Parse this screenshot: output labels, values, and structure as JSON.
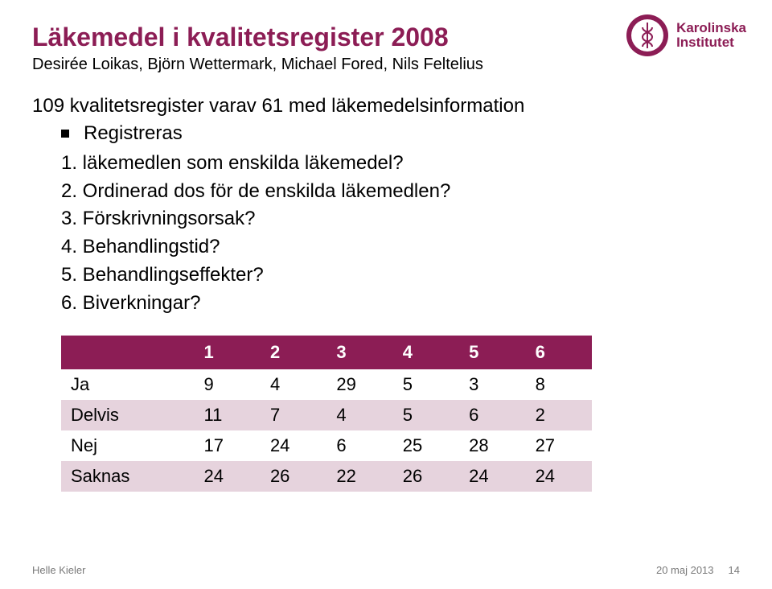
{
  "accent_color": "#8c1d55",
  "title_color": "#8c1d55",
  "title": "Läkemedel i kvalitetsregister 2008",
  "subtitle": "Desirée Loikas, Björn Wettermark, Michael Fored, Nils Feltelius",
  "lead": "109 kvalitetsregister varav 61 med läkemedelsinformation",
  "bullet": "Registreras",
  "questions": [
    "1. läkemedlen som enskilda läkemedel?",
    "2. Ordinerad dos för de enskilda läkemedlen?",
    "3. Förskrivningsorsak?",
    "4. Behandlingstid?",
    "5. Behandlingseffekter?",
    "6. Biverkningar?"
  ],
  "table": {
    "header_bg": "#8c1d55",
    "header_fg": "#ffffff",
    "row_alt_bg": "#e6d3dd",
    "row_bg": "#ffffff",
    "cell_font_size": 22,
    "columns": [
      "",
      "1",
      "2",
      "3",
      "4",
      "5",
      "6"
    ],
    "rows": [
      {
        "label": "Ja",
        "values": [
          "9",
          "4",
          "29",
          "5",
          "3",
          "8"
        ]
      },
      {
        "label": "Delvis",
        "values": [
          "11",
          "7",
          "4",
          "5",
          "6",
          "2"
        ]
      },
      {
        "label": "Nej",
        "values": [
          "17",
          "24",
          "6",
          "25",
          "28",
          "27"
        ]
      },
      {
        "label": "Saknas",
        "values": [
          "24",
          "26",
          "22",
          "26",
          "24",
          "24"
        ]
      }
    ]
  },
  "logo": {
    "seal_outer": "#8c1d55",
    "seal_inner": "#ffffff",
    "line1": "Karolinska",
    "line2": "Institutet",
    "text_color": "#8c1d55"
  },
  "footer": {
    "left": "Helle Kieler",
    "date": "20 maj 2013",
    "page": "14"
  }
}
